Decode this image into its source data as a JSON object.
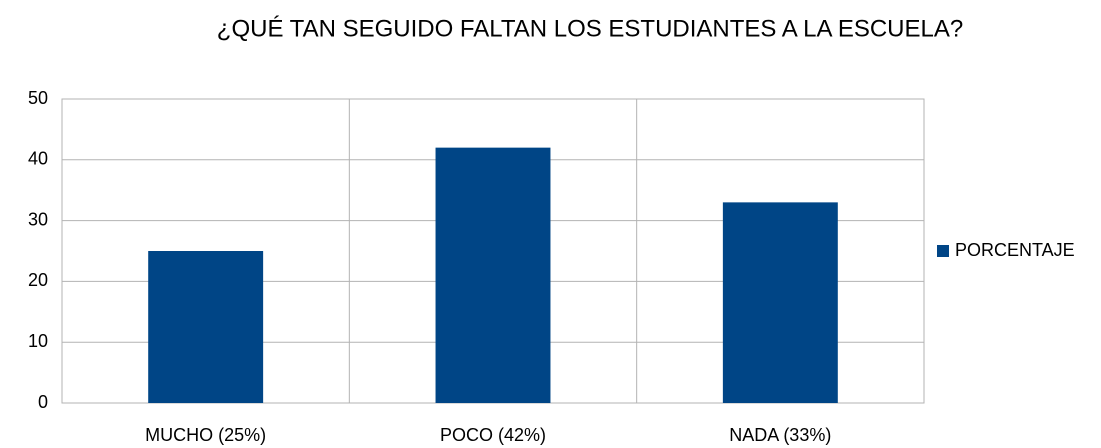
{
  "chart_data": {
    "type": "bar",
    "title": "¿QUÉ TAN SEGUIDO FALTAN LOS ESTUDIANTES A LA ESCUELA?",
    "categories": [
      "MUCHO (25%)",
      "POCO (42%)",
      "NADA (33%)"
    ],
    "series": [
      {
        "name": "PORCENTAJE",
        "color": "#004586",
        "values": [
          25,
          42,
          33
        ]
      }
    ],
    "ylim": [
      0,
      50
    ],
    "yticks": [
      0,
      10,
      20,
      30,
      40,
      50
    ],
    "grid": true,
    "legend": "right"
  }
}
